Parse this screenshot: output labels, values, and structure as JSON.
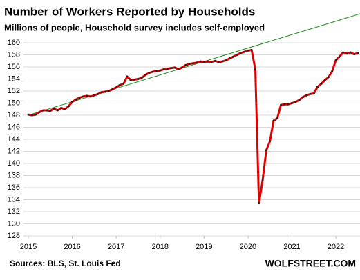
{
  "chart_data": {
    "type": "line",
    "title": "Number of Workers Reported by Households",
    "subtitle": "Millions of people, Household survey includes self-employed",
    "source": "Sources: BLS, St. Louis Fed",
    "watermark": "WOLFSTREET.COM",
    "xlim": [
      2015,
      2022.55
    ],
    "xticks": [
      2015,
      2016,
      2017,
      2018,
      2019,
      2020,
      2021,
      2022
    ],
    "ylim": [
      128,
      160
    ],
    "yticks": [
      128,
      130,
      132,
      134,
      136,
      138,
      140,
      142,
      144,
      146,
      148,
      150,
      152,
      154,
      156,
      158,
      160
    ],
    "grid": true,
    "series": [
      {
        "color": "#e00000",
        "markers": true,
        "x": [
          2015,
          2015.083,
          2015.167,
          2015.25,
          2015.333,
          2015.417,
          2015.5,
          2015.583,
          2015.667,
          2015.75,
          2015.833,
          2015.917,
          2016,
          2016.083,
          2016.167,
          2016.25,
          2016.333,
          2016.417,
          2016.5,
          2016.583,
          2016.667,
          2016.75,
          2016.833,
          2016.917,
          2017,
          2017.083,
          2017.167,
          2017.25,
          2017.333,
          2017.417,
          2017.5,
          2017.583,
          2017.667,
          2017.75,
          2017.833,
          2017.917,
          2018,
          2018.083,
          2018.167,
          2018.25,
          2018.333,
          2018.417,
          2018.5,
          2018.583,
          2018.667,
          2018.75,
          2018.833,
          2018.917,
          2019,
          2019.083,
          2019.167,
          2019.25,
          2019.333,
          2019.417,
          2019.5,
          2019.583,
          2019.667,
          2019.75,
          2019.833,
          2019.917,
          2020,
          2020.083,
          2020.167,
          2020.25,
          2020.333,
          2020.417,
          2020.5,
          2020.583,
          2020.667,
          2020.75,
          2020.833,
          2020.917,
          2021,
          2021.083,
          2021.167,
          2021.25,
          2021.333,
          2021.417,
          2021.5,
          2021.583,
          2021.667,
          2021.75,
          2021.833,
          2021.917,
          2022,
          2022.083,
          2022.167,
          2022.25,
          2022.333,
          2022.417,
          2022.5
        ],
        "values": [
          148.1,
          148.0,
          148.1,
          148.5,
          148.8,
          148.8,
          148.7,
          149.1,
          148.8,
          149.2,
          149.0,
          149.5,
          150.2,
          150.6,
          150.9,
          151.1,
          151.2,
          151.1,
          151.3,
          151.5,
          151.8,
          151.9,
          152.0,
          152.3,
          152.6,
          153.0,
          153.2,
          154.4,
          153.8,
          153.9,
          154.0,
          154.2,
          154.7,
          155.0,
          155.2,
          155.3,
          155.4,
          155.6,
          155.7,
          155.8,
          155.9,
          155.6,
          155.9,
          156.3,
          156.5,
          156.6,
          156.7,
          156.9,
          156.8,
          156.9,
          156.8,
          157.0,
          156.8,
          156.9,
          157.1,
          157.4,
          157.7,
          158.0,
          158.3,
          158.5,
          158.7,
          158.8,
          155.6,
          133.4,
          137.2,
          142.2,
          143.7,
          147.1,
          147.5,
          149.7,
          149.8,
          149.8,
          150.0,
          150.2,
          150.5,
          151.0,
          151.3,
          151.5,
          151.6,
          152.7,
          153.2,
          153.8,
          154.3,
          155.3,
          157.1,
          157.7,
          158.4,
          158.2,
          158.4,
          158.1,
          158.3
        ]
      },
      {
        "color": "#1a8a1a",
        "markers": false,
        "x": [
          2015,
          2022.55
        ],
        "values": [
          148.0,
          164.8
        ]
      }
    ]
  }
}
